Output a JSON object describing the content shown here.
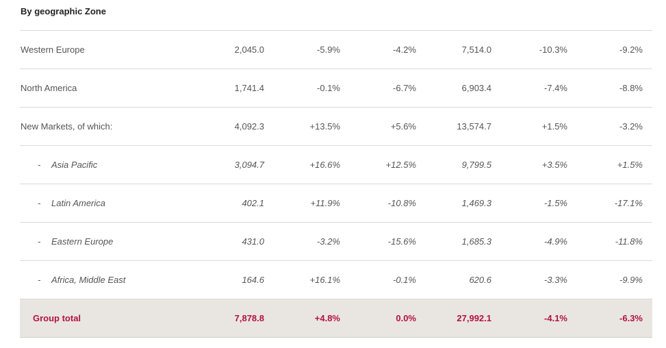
{
  "title": "By geographic Zone",
  "rows": [
    {
      "label": "Western Europe",
      "v1": "2,045.0",
      "v2": "-5.9%",
      "v3": "-4.2%",
      "v4": "7,514.0",
      "v5": "-10.3%",
      "v6": "-9.2%"
    },
    {
      "label": "North America",
      "v1": "1,741.4",
      "v2": "-0.1%",
      "v3": "-6.7%",
      "v4": "6,903.4",
      "v5": "-7.4%",
      "v6": "-8.8%"
    },
    {
      "label": "New Markets, of which:",
      "v1": "4,092.3",
      "v2": "+13.5%",
      "v3": "+5.6%",
      "v4": "13,574.7",
      "v5": "+1.5%",
      "v6": "-3.2%"
    }
  ],
  "sub_rows": [
    {
      "dash": "-",
      "label": "Asia Pacific",
      "v1": "3,094.7",
      "v2": "+16.6%",
      "v3": "+12.5%",
      "v4": "9,799.5",
      "v5": "+3.5%",
      "v6": "+1.5%"
    },
    {
      "dash": "-",
      "label": "Latin America",
      "v1": "402.1",
      "v2": "+11.9%",
      "v3": "-10.8%",
      "v4": "1,469.3",
      "v5": "-1.5%",
      "v6": "-17.1%"
    },
    {
      "dash": "-",
      "label": "Eastern Europe",
      "v1": "431.0",
      "v2": "-3.2%",
      "v3": "-15.6%",
      "v4": "1,685.3",
      "v5": "-4.9%",
      "v6": "-11.8%"
    },
    {
      "dash": "-",
      "label": "Africa, Middle East",
      "v1": "164.6",
      "v2": "+16.1%",
      "v3": "-0.1%",
      "v4": "620.6",
      "v5": "-3.3%",
      "v6": "-9.9%"
    }
  ],
  "total": {
    "label": "Group total",
    "v1": "7,878.8",
    "v2": "+4.8%",
    "v3": "0.0%",
    "v4": "27,992.1",
    "v5": "-4.1%",
    "v6": "-6.3%"
  },
  "colors": {
    "total_text": "#b3123f",
    "total_background": "#e9e6e2",
    "rule": "#d9d9d9"
  }
}
